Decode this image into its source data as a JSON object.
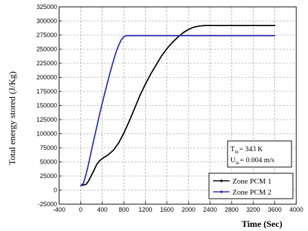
{
  "chart_data": {
    "type": "line",
    "xlabel": "Time (Sec)",
    "ylabel": "Total energy stored (J/Kg)",
    "xlim": [
      -400,
      4000
    ],
    "ylim": [
      -25000,
      325000
    ],
    "x_ticks": [
      -400,
      0,
      400,
      800,
      1200,
      1600,
      2000,
      2400,
      2800,
      3200,
      3600,
      4000
    ],
    "y_ticks": [
      -25000,
      0,
      25000,
      50000,
      75000,
      100000,
      125000,
      150000,
      175000,
      200000,
      225000,
      250000,
      275000,
      300000,
      325000
    ],
    "grid": true,
    "grid_style": "dashed",
    "legend_position": "bottom-right",
    "series": [
      {
        "name": "Zone PCM 1",
        "color": "#000000",
        "x": [
          0,
          100,
          150,
          200,
          250,
          300,
          350,
          400,
          500,
          600,
          700,
          800,
          900,
          1000,
          1100,
          1200,
          1300,
          1400,
          1500,
          1600,
          1700,
          1800,
          1900,
          2000,
          2100,
          2200,
          2300,
          2400,
          2600,
          2800,
          3000,
          3200,
          3400,
          3600
        ],
        "y": [
          8000,
          10000,
          17000,
          26000,
          36000,
          46000,
          52000,
          56000,
          62000,
          70000,
          83000,
          101000,
          122000,
          145000,
          168000,
          188000,
          206000,
          222000,
          238000,
          251000,
          262000,
          271000,
          279000,
          285000,
          289000,
          291000,
          292000,
          292000,
          292000,
          292000,
          292000,
          292000,
          292000,
          292000
        ]
      },
      {
        "name": "Zone PCM 2",
        "color": "#2a2ab8",
        "x": [
          0,
          50,
          100,
          150,
          200,
          250,
          300,
          350,
          400,
          450,
          500,
          550,
          600,
          650,
          700,
          750,
          800,
          850,
          900,
          1000,
          1200,
          1600,
          2000,
          2400,
          2800,
          3200,
          3600
        ],
        "y": [
          8000,
          12000,
          28000,
          48000,
          70000,
          92000,
          113000,
          134000,
          154000,
          173000,
          192000,
          210000,
          227000,
          243000,
          256000,
          266000,
          272000,
          274000,
          274000,
          274000,
          274000,
          274000,
          274000,
          274000,
          274000,
          274000,
          274000
        ]
      }
    ],
    "annotation": {
      "line1_main": "T",
      "line1_sub": "in",
      "line1_rest": "= 343 K",
      "line2_main": "U",
      "line2_sub": "in",
      "line2_rest": "= 0.004 m/s"
    }
  }
}
